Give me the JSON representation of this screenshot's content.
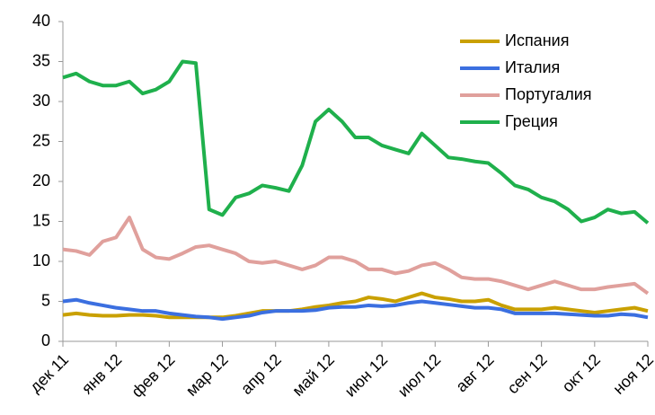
{
  "chart_data": {
    "type": "line",
    "categories": [
      "дек 11",
      null,
      null,
      null,
      "янв 12",
      null,
      null,
      null,
      "фев 12",
      null,
      null,
      null,
      "мар 12",
      null,
      null,
      null,
      "апр 12",
      null,
      null,
      null,
      "май 12",
      null,
      null,
      null,
      "июн 12",
      null,
      null,
      null,
      "июл 12",
      null,
      null,
      null,
      "авг 12",
      null,
      null,
      null,
      "сен 12",
      null,
      null,
      null,
      "окт 12",
      null,
      null,
      null,
      "ноя 12"
    ],
    "ylim": [
      0,
      40
    ],
    "yticks": [
      0,
      5,
      10,
      15,
      20,
      25,
      30,
      35,
      40
    ],
    "grid": false,
    "legend": "upper right",
    "series": [
      {
        "name": "Испания",
        "color": "#c9a000",
        "values": [
          3.3,
          3.5,
          3.3,
          3.2,
          3.2,
          3.3,
          3.3,
          3.2,
          3,
          3,
          3,
          3,
          3,
          3.2,
          3.5,
          3.8,
          3.8,
          3.8,
          4,
          4.3,
          4.5,
          4.8,
          5,
          5.5,
          5.3,
          5,
          5.5,
          6,
          5.5,
          5.3,
          5,
          5,
          5.2,
          4.5,
          4,
          4,
          4,
          4.2,
          4,
          3.8,
          3.6,
          3.8,
          4,
          4.2,
          3.8
        ]
      },
      {
        "name": "Италия",
        "color": "#3b6fe0",
        "values": [
          5,
          5.2,
          4.8,
          4.5,
          4.2,
          4,
          3.8,
          3.8,
          3.5,
          3.3,
          3.1,
          3,
          2.8,
          3,
          3.2,
          3.6,
          3.8,
          3.8,
          3.8,
          3.9,
          4.2,
          4.3,
          4.3,
          4.5,
          4.4,
          4.5,
          4.8,
          5,
          4.8,
          4.6,
          4.4,
          4.2,
          4.2,
          4,
          3.5,
          3.5,
          3.5,
          3.5,
          3.4,
          3.3,
          3.2,
          3.2,
          3.4,
          3.3,
          3
        ]
      },
      {
        "name": "Португалия",
        "color": "#e0a09c",
        "values": [
          11.5,
          11.3,
          10.8,
          12.5,
          13,
          15.5,
          11.5,
          10.5,
          10.3,
          11,
          11.8,
          12,
          11.5,
          11,
          10,
          9.8,
          10,
          9.5,
          9,
          9.5,
          10.5,
          10.5,
          10,
          9,
          9,
          8.5,
          8.8,
          9.5,
          9.8,
          9,
          8,
          7.8,
          7.8,
          7.5,
          7,
          6.5,
          7,
          7.5,
          7,
          6.5,
          6.5,
          6.8,
          7,
          7.2,
          6
        ]
      },
      {
        "name": "Греция",
        "color": "#1fb04c",
        "values": [
          33,
          33.5,
          32.5,
          32,
          32,
          32.5,
          31,
          31.5,
          32.5,
          35,
          34.8,
          16.5,
          15.8,
          18,
          18.5,
          19.5,
          19.2,
          18.8,
          22,
          27.5,
          29,
          27.5,
          25.5,
          25.5,
          24.5,
          24,
          23.5,
          26,
          24.5,
          23,
          22.8,
          22.5,
          22.3,
          21,
          19.5,
          19,
          18,
          17.5,
          16.5,
          15,
          15.5,
          16.5,
          16,
          16.2,
          14.8
        ]
      }
    ]
  }
}
